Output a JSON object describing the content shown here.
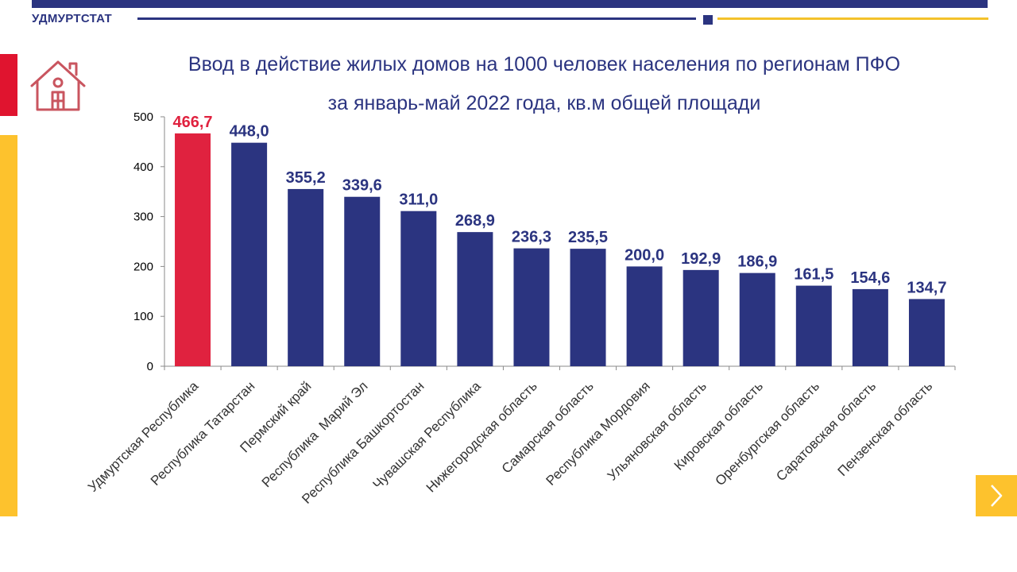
{
  "header": {
    "brand": "УДМУРТСТАТ"
  },
  "icons": {
    "house": "house-icon",
    "next": "chevron-right-icon"
  },
  "colors": {
    "primary": "#2b3480",
    "highlight": "#e0223f",
    "accent_yellow": "#fdc22d",
    "accent_red": "#e0142f"
  },
  "title": {
    "line1": "Ввод в действие жилых домов на 1000 человек населения по регионам ПФО",
    "line2": "за январь-май 2022 года, кв.м общей площади"
  },
  "chart_data": {
    "type": "bar",
    "categories": [
      "Удмуртская Республика",
      "Республика Татарстан",
      "Пермский край",
      "Республика  Марий Эл",
      "Республика Башкортостан",
      "Чувашская Республика",
      "Нижегородская область",
      "Самарская область",
      "Республика Мордовия",
      "Ульяновская область",
      "Кировская область",
      "Оренбургская область",
      "Саратовская область",
      "Пензенская область"
    ],
    "values": [
      466.7,
      448.0,
      355.2,
      339.6,
      311.0,
      268.9,
      236.3,
      235.5,
      200.0,
      192.9,
      186.9,
      161.5,
      154.6,
      134.7
    ],
    "value_labels": [
      "466,7",
      "448,0",
      "355,2",
      "339,6",
      "311,0",
      "268,9",
      "236,3",
      "235,5",
      "200,0",
      "192,9",
      "186,9",
      "161,5",
      "154,6",
      "134,7"
    ],
    "highlight_index": 0,
    "ylim": [
      0,
      500
    ],
    "yticks": [
      0,
      100,
      200,
      300,
      400,
      500
    ],
    "grid": false
  }
}
